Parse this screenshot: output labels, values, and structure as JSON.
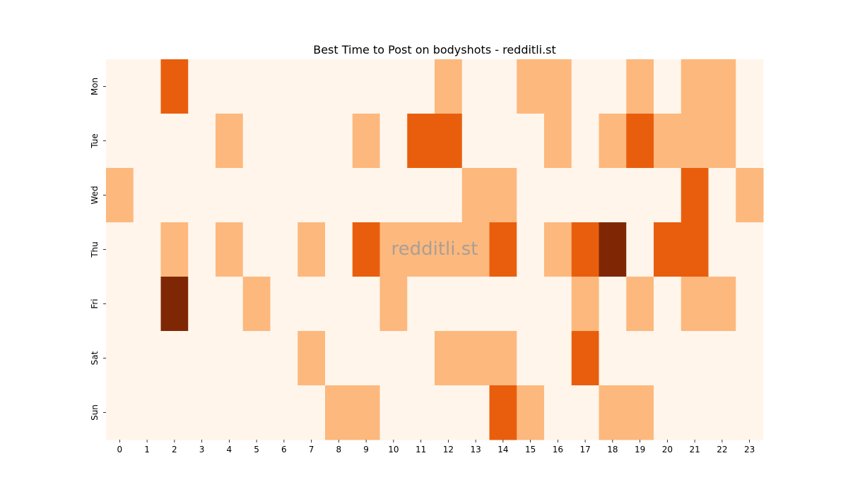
{
  "chart_data": {
    "type": "heatmap",
    "title": "Best Time to Post on bodyshots - redditli.st",
    "watermark": "redditli.st",
    "x": [
      "0",
      "1",
      "2",
      "3",
      "4",
      "5",
      "6",
      "7",
      "8",
      "9",
      "10",
      "11",
      "12",
      "13",
      "14",
      "15",
      "16",
      "17",
      "18",
      "19",
      "20",
      "21",
      "22",
      "23"
    ],
    "y": [
      "Mon",
      "Tue",
      "Wed",
      "Thu",
      "Fri",
      "Sat",
      "Sun"
    ],
    "values": [
      [
        0,
        0,
        2,
        0,
        0,
        0,
        0,
        0,
        0,
        0,
        0,
        0,
        1,
        0,
        0,
        1,
        1,
        0,
        0,
        1,
        0,
        1,
        1,
        0
      ],
      [
        0,
        0,
        0,
        0,
        1,
        0,
        0,
        0,
        0,
        1,
        0,
        2,
        2,
        0,
        0,
        0,
        1,
        0,
        1,
        2,
        1,
        1,
        1,
        0
      ],
      [
        1,
        0,
        0,
        0,
        0,
        0,
        0,
        0,
        0,
        0,
        0,
        0,
        0,
        1,
        1,
        0,
        0,
        0,
        0,
        0,
        0,
        2,
        0,
        1
      ],
      [
        0,
        0,
        1,
        0,
        1,
        0,
        0,
        1,
        0,
        2,
        1,
        1,
        1,
        1,
        2,
        0,
        1,
        2,
        3,
        0,
        2,
        2,
        0,
        0
      ],
      [
        0,
        0,
        3,
        0,
        0,
        1,
        0,
        0,
        0,
        0,
        1,
        0,
        0,
        0,
        0,
        0,
        0,
        1,
        0,
        1,
        0,
        1,
        1,
        0
      ],
      [
        0,
        0,
        0,
        0,
        0,
        0,
        0,
        1,
        0,
        0,
        0,
        0,
        1,
        1,
        1,
        0,
        0,
        2,
        0,
        0,
        0,
        0,
        0,
        0
      ],
      [
        0,
        0,
        0,
        0,
        0,
        0,
        0,
        0,
        1,
        1,
        0,
        0,
        0,
        0,
        2,
        1,
        0,
        0,
        1,
        1,
        0,
        0,
        0,
        0
      ]
    ],
    "colors": [
      "#fff5eb",
      "#fdb87d",
      "#e95e0d",
      "#7f2704"
    ],
    "xlabel": "",
    "ylabel": ""
  }
}
